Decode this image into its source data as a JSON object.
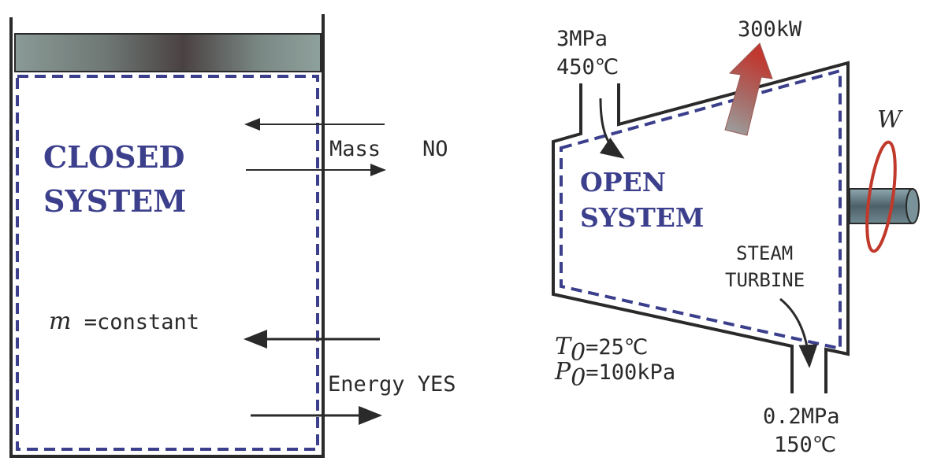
{
  "closed": {
    "title_line1": "CLOSED",
    "title_line2": "SYSTEM",
    "mass_label": "Mass",
    "mass_value": "NO",
    "m_symbol": "m",
    "m_constant": " =constant",
    "energy_label": "Energy YES"
  },
  "open": {
    "inlet_pressure": "3MPa",
    "inlet_temp": "450℃",
    "heat_loss": "300kW",
    "work_symbol": "W",
    "title_line1": "OPEN",
    "title_line2": "SYSTEM",
    "device_line1": "STEAM",
    "device_line2": "TURBINE",
    "t0_symbol": "T",
    "t0_value": "=25℃",
    "p0_symbol": "P",
    "p0_value": "=100kPa",
    "zero_sub": "0",
    "outlet_pressure": "0.2MPa",
    "outlet_temp": "150℃"
  },
  "colors": {
    "system_boundary": "#3b3f8c",
    "heat_arrow": "#c0504d",
    "wall": "#2a2a2a"
  }
}
